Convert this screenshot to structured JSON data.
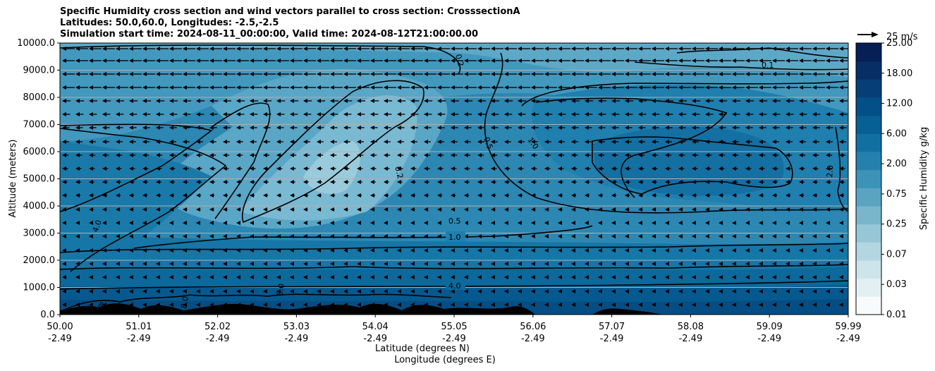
{
  "title_lines": [
    "Specific Humidity cross section and wind vectors parallel to cross section: CrosssectionA",
    "Latitudes: 50.0,60.0, Longitudes: -2.5,-2.5",
    "Simulation start time: 2024-08-11_00:00:00, Valid time: 2024-08-12T21:00:00.00"
  ],
  "chart_data": {
    "type": "heatmap",
    "ylabel": "Altitude (meters)",
    "xlabel_lines": [
      "Latitude (degrees N)",
      "Longitude (degrees E)"
    ],
    "ylim": [
      0,
      10000
    ],
    "yticks": [
      "0.0",
      "1000.0",
      "2000.0",
      "3000.0",
      "4000.0",
      "5000.0",
      "6000.0",
      "7000.0",
      "8000.0",
      "9000.0",
      "10000.0"
    ],
    "xticks": [
      {
        "lat": "50.00",
        "lon": "-2.49"
      },
      {
        "lat": "51.01",
        "lon": "-2.49"
      },
      {
        "lat": "52.02",
        "lon": "-2.49"
      },
      {
        "lat": "53.03",
        "lon": "-2.49"
      },
      {
        "lat": "54.04",
        "lon": "-2.49"
      },
      {
        "lat": "55.05",
        "lon": "-2.49"
      },
      {
        "lat": "56.06",
        "lon": "-2.49"
      },
      {
        "lat": "57.07",
        "lon": "-2.49"
      },
      {
        "lat": "58.08",
        "lon": "-2.49"
      },
      {
        "lat": "59.09",
        "lon": "-2.49"
      },
      {
        "lat": "59.99",
        "lon": "-2.49"
      }
    ],
    "grid": "horizontal",
    "colorbar": {
      "label": "Specific Humidity g/kg",
      "levels": [
        "0.01",
        "0.03",
        "0.07",
        "0.25",
        "0.75",
        "2.00",
        "6.00",
        "12.00",
        "18.00",
        "25.00"
      ],
      "colors": [
        "#f7fbfc",
        "#e3f0f3",
        "#cde4ea",
        "#b3d6e1",
        "#97c7d7",
        "#79b6cc",
        "#5aa4c2",
        "#3d92b8",
        "#2580ae",
        "#126fa2",
        "#065f95",
        "#034f87",
        "#063f77",
        "#072f66",
        "#061f55"
      ]
    },
    "quiver_key": {
      "label": "25 m/s",
      "speed": 25
    },
    "contour_labels": [
      "0.1",
      "0.2",
      "0.5",
      "1.0",
      "2.0",
      "4.0",
      "8.0"
    ],
    "wind": "predominantly southward (parallel to section), strongest 8000-9600 m"
  }
}
